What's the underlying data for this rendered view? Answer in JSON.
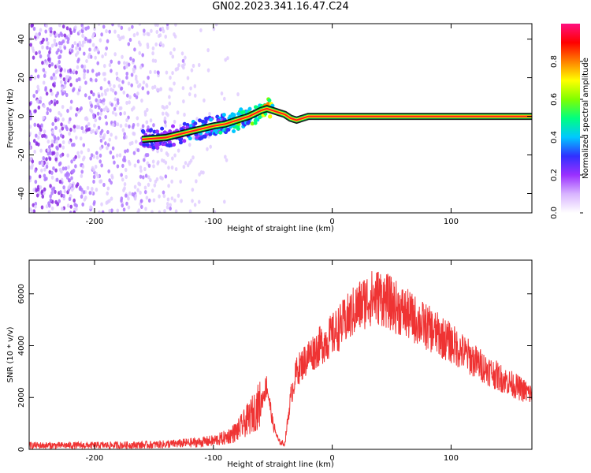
{
  "title": "GN02.2023.341.16.47.C24",
  "colors": {
    "axis": "#000000",
    "snr_line": "#ef3333",
    "scatter_light": "#e0ccff",
    "scatter_mid": "#b07aff",
    "scatter_dark": "#8a2be2"
  },
  "colorbar": {
    "label": "Normalized spectral amplitude",
    "tick_labels": [
      "0.0",
      "0.2",
      "0.4",
      "0.6",
      "0.8"
    ],
    "ticks": [
      0.0,
      0.2,
      0.4,
      0.6,
      0.8
    ],
    "range": [
      0,
      1
    ],
    "stops": [
      "#ffffff",
      "#d8b4ff",
      "#9b30ff",
      "#3030ff",
      "#00c8ff",
      "#00ff80",
      "#80ff00",
      "#ffff00",
      "#ff8000",
      "#ff0000",
      "#ff1080"
    ]
  },
  "chart_data": [
    {
      "type": "heatmap",
      "title": "GN02.2023.341.16.47.C24",
      "xlabel": "Height of straight line (km)",
      "ylabel": "Frequency (Hz)",
      "xlim": [
        -255,
        168
      ],
      "ylim": [
        -50,
        48
      ],
      "x_tick_labels": [
        "-200",
        "-100",
        "0",
        "100"
      ],
      "x_ticks": [
        -200,
        -100,
        0,
        100
      ],
      "y_tick_labels": [
        "40",
        "20",
        "0",
        "-20",
        "-40"
      ],
      "y_ticks": [
        40,
        20,
        0,
        -20,
        -40
      ],
      "ridge": {
        "x": [
          -160,
          -140,
          -120,
          -100,
          -90,
          -80,
          -70,
          -60,
          -55,
          -50,
          -45,
          -40,
          -35,
          -30,
          -25,
          -20,
          0,
          168
        ],
        "y": [
          -12,
          -11,
          -8,
          -5,
          -4,
          -2,
          0,
          3,
          4,
          3,
          2,
          1,
          -1,
          -2,
          -1,
          0,
          0,
          0
        ],
        "amplitude": [
          0.25,
          0.3,
          0.35,
          0.45,
          0.5,
          0.55,
          0.6,
          0.7,
          0.75,
          0.85,
          0.9,
          0.95,
          0.9,
          0.9,
          0.95,
          0.95,
          0.95,
          0.95
        ]
      },
      "noise_region_x": [
        -255,
        -70
      ]
    },
    {
      "type": "line",
      "xlabel": "Height of straight line (km)",
      "ylabel": "SNR (10 * v/v)",
      "xlim": [
        -255,
        168
      ],
      "ylim": [
        0,
        7300
      ],
      "x_tick_labels": [
        "-200",
        "-100",
        "0",
        "100"
      ],
      "x_ticks": [
        -200,
        -100,
        0,
        100
      ],
      "y_tick_labels": [
        "6000",
        "4000",
        "2000",
        "0"
      ],
      "y_ticks": [
        6000,
        4000,
        2000,
        0
      ],
      "series": [
        {
          "color": "#ef3333",
          "x": [
            -255,
            -220,
            -180,
            -150,
            -130,
            -110,
            -100,
            -90,
            -80,
            -70,
            -60,
            -55,
            -50,
            -45,
            -40,
            -35,
            -30,
            -25,
            -20,
            -10,
            0,
            10,
            20,
            30,
            40,
            60,
            80,
            100,
            120,
            140,
            168
          ],
          "y": [
            150,
            150,
            160,
            180,
            220,
            280,
            330,
            450,
            700,
            1200,
            1800,
            2500,
            1000,
            300,
            200,
            2000,
            3000,
            3300,
            3600,
            4000,
            4400,
            4900,
            5400,
            5800,
            5900,
            5300,
            4700,
            4100,
            3400,
            2800,
            2100
          ]
        }
      ]
    }
  ]
}
